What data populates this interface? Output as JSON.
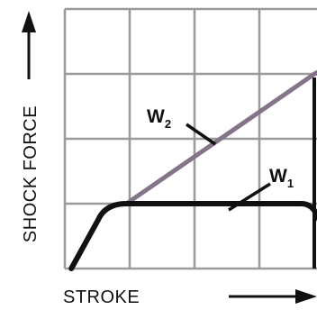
{
  "chart_data": {
    "type": "line",
    "xlabel": "STROKE",
    "ylabel": "SHOCK FORCE",
    "x_range": [
      0,
      4
    ],
    "y_range": [
      0,
      4
    ],
    "grid": true,
    "series": [
      {
        "name": "W2",
        "label_main": "W",
        "label_sub": "2",
        "color": "#847488",
        "points": [
          [
            0.95,
            1.0
          ],
          [
            3.85,
            3.0
          ]
        ]
      },
      {
        "name": "W1",
        "label_main": "W",
        "label_sub": "1",
        "color": "#111111",
        "points": [
          [
            0.1,
            0.0
          ],
          [
            0.6,
            0.95
          ],
          [
            0.95,
            1.0
          ],
          [
            3.65,
            1.0
          ],
          [
            4.0,
            0.3
          ]
        ]
      }
    ]
  }
}
